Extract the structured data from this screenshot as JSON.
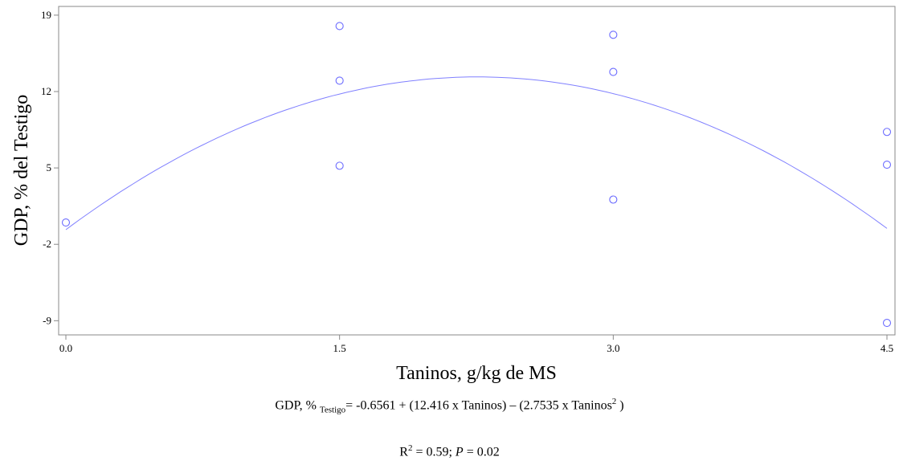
{
  "chart_data": {
    "type": "scatter",
    "xlabel": "Taninos, g/kg de MS",
    "ylabel": "GDP, % del Testigo",
    "xlim": [
      0,
      4.5
    ],
    "ylim": [
      -10.3,
      19.8
    ],
    "xticks": [
      0.0,
      1.5,
      3.0,
      4.5
    ],
    "xtick_labels": [
      "0.0",
      "1.5",
      "3.0",
      "4.5"
    ],
    "yticks": [
      -9,
      -2,
      5,
      12,
      19
    ],
    "ytick_labels": [
      "-9",
      "-2",
      "5",
      "12",
      "19"
    ],
    "grid": false,
    "points": [
      {
        "x": 0.0,
        "y": 0.0
      },
      {
        "x": 1.5,
        "y": 18.0
      },
      {
        "x": 1.5,
        "y": 13.0
      },
      {
        "x": 1.5,
        "y": 5.2
      },
      {
        "x": 3.0,
        "y": 17.2
      },
      {
        "x": 3.0,
        "y": 13.8
      },
      {
        "x": 3.0,
        "y": 2.1
      },
      {
        "x": 4.5,
        "y": 8.3
      },
      {
        "x": 4.5,
        "y": 5.3
      },
      {
        "x": 4.5,
        "y": -9.2
      }
    ],
    "fit": {
      "type": "quadratic",
      "intercept": -0.6561,
      "linear": 12.416,
      "quadratic": -2.7535
    },
    "marker_color": "#6b6bff",
    "line_color": "#8080ff"
  },
  "equation": {
    "lhs": "GDP, %",
    "sub": "Testigo",
    "rhs_part1": "= -0.6561 + (12.416 x Taninos) – (2.7535 x Taninos",
    "sup": "2",
    "rhs_part2": " )"
  },
  "stats": {
    "r_label": "R",
    "r_sup": "2",
    "r_value": " = 0.59; ",
    "p_label": "P",
    "p_value": " = 0.02"
  }
}
